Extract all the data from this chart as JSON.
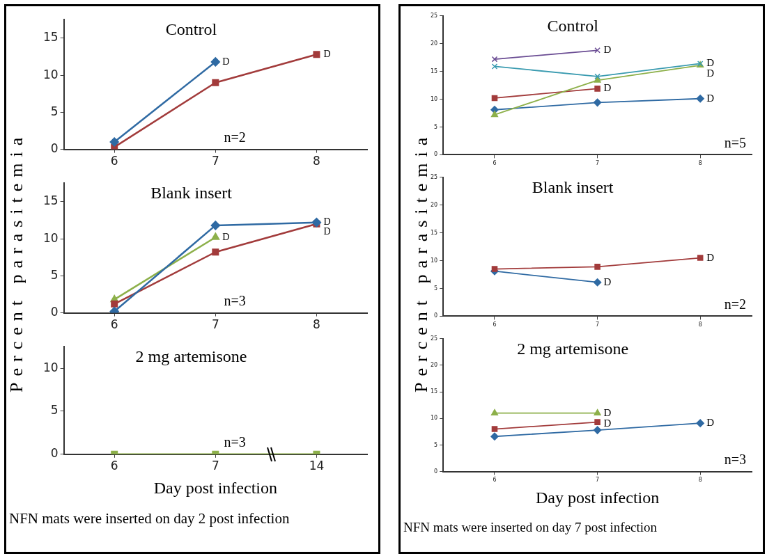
{
  "chart_data": [
    {
      "type": "line",
      "title": "Control",
      "categories": [
        "6",
        "7",
        "8"
      ],
      "ylim": [
        0,
        17.5
      ],
      "yticks": [
        0,
        5,
        10,
        15
      ],
      "grid": false,
      "line_style": "solid",
      "series": [
        {
          "color": "#2f6aa3",
          "marker": "diamond",
          "values": [
            1,
            11.8,
            null
          ]
        },
        {
          "color": "#a23b3b",
          "marker": "square",
          "values": [
            0.3,
            9,
            12.8
          ]
        }
      ],
      "annotations": [
        "n=2",
        {
          "text": "D",
          "x": "7",
          "y": 11.8
        },
        {
          "text": "D",
          "x": "8",
          "y": 12.8
        }
      ]
    },
    {
      "type": "line",
      "title": "Blank insert",
      "ylabel": "Percent parasitemia",
      "categories": [
        "6",
        "7",
        "8"
      ],
      "ylim": [
        0,
        17.5
      ],
      "yticks": [
        0,
        5,
        10,
        15
      ],
      "grid": false,
      "line_style": "solid",
      "series": [
        {
          "color": "#2f6aa3",
          "marker": "diamond",
          "values": [
            0.2,
            11.8,
            12.2
          ]
        },
        {
          "color": "#a23b3b",
          "marker": "square",
          "values": [
            1.2,
            8.2,
            12
          ]
        },
        {
          "color": "#8db04a",
          "marker": "triangle",
          "values": [
            1.8,
            10.2,
            null
          ]
        }
      ],
      "annotations": [
        "n=3",
        {
          "text": "D",
          "x": "8",
          "y": 12.2
        },
        {
          "text": "D",
          "x": "8",
          "y": 12
        },
        {
          "text": "D",
          "x": "7",
          "y": 10.2
        }
      ]
    },
    {
      "type": "line",
      "title": "2 mg artemisone",
      "xlabel": "Day post infection",
      "categories": [
        "6",
        "7",
        "14"
      ],
      "ylim": [
        0,
        12.5
      ],
      "yticks": [
        0,
        5,
        10
      ],
      "grid": false,
      "line_style": "solid",
      "series": [
        {
          "color": "#8db04a",
          "marker": "square",
          "values": [
            0,
            0,
            0
          ]
        }
      ],
      "annotations": [
        "n=3",
        "NFN mats were inserted on day 2 post infection"
      ]
    },
    {
      "type": "line",
      "title": "Control",
      "categories": [
        "6",
        "7",
        "8"
      ],
      "ylim": [
        0,
        25
      ],
      "yticks": [
        0,
        5,
        10,
        15,
        20,
        25
      ],
      "grid": false,
      "line_style": "solid",
      "series": [
        {
          "color": "#6a4c93",
          "marker": "cross",
          "values": [
            17.2,
            18.8,
            null
          ]
        },
        {
          "color": "#3a9bb0",
          "marker": "cross",
          "values": [
            15.9,
            14.1,
            16.4
          ]
        },
        {
          "color": "#8db04a",
          "marker": "triangle",
          "values": [
            7.2,
            13.4,
            16.1
          ]
        },
        {
          "color": "#a23b3b",
          "marker": "square",
          "values": [
            10.2,
            11.9,
            null
          ]
        },
        {
          "color": "#2f6aa3",
          "marker": "diamond",
          "values": [
            8.1,
            9.4,
            10.1
          ]
        }
      ],
      "annotations": [
        "n=5",
        {
          "text": "D",
          "x": "7",
          "y": 18.8
        },
        {
          "text": "D",
          "x": "7",
          "y": 11.9
        },
        {
          "text": "D",
          "x": "8",
          "y": 16.4
        },
        {
          "text": "D",
          "x": "8",
          "y": 16.1
        },
        {
          "text": "D",
          "x": "8",
          "y": 10.1
        }
      ]
    },
    {
      "type": "line",
      "title": "Blank insert",
      "ylabel": "Percent parasitemia",
      "categories": [
        "6",
        "7",
        "8"
      ],
      "ylim": [
        0,
        25
      ],
      "yticks": [
        0,
        5,
        10,
        15,
        20,
        25
      ],
      "grid": false,
      "line_style": "solid",
      "series": [
        {
          "color": "#a23b3b",
          "marker": "square",
          "values": [
            8.5,
            8.9,
            10.5
          ]
        },
        {
          "color": "#2f6aa3",
          "marker": "diamond",
          "values": [
            8.1,
            6.1,
            null
          ]
        }
      ],
      "annotations": [
        "n=2",
        {
          "text": "D",
          "x": "8",
          "y": 10.5
        },
        {
          "text": "D",
          "x": "7",
          "y": 6.1
        }
      ]
    },
    {
      "type": "line",
      "title": "2 mg artemisone",
      "xlabel": "Day post infection",
      "categories": [
        "6",
        "7",
        "8"
      ],
      "ylim": [
        0,
        25
      ],
      "yticks": [
        0,
        5,
        10,
        15,
        20,
        25
      ],
      "grid": false,
      "line_style": "solid",
      "series": [
        {
          "color": "#8db04a",
          "marker": "triangle",
          "values": [
            11,
            11,
            null
          ]
        },
        {
          "color": "#a23b3b",
          "marker": "square",
          "values": [
            8,
            9.3,
            null
          ]
        },
        {
          "color": "#2f6aa3",
          "marker": "diamond",
          "values": [
            6.6,
            7.8,
            9.1
          ]
        }
      ],
      "annotations": [
        "n=3",
        {
          "text": "D",
          "x": "7",
          "y": 11
        },
        {
          "text": "D",
          "x": "7",
          "y": 9.3
        },
        {
          "text": "D",
          "x": "8",
          "y": 9.1
        },
        "NFN mats were inserted on day 7 post infection"
      ]
    }
  ]
}
